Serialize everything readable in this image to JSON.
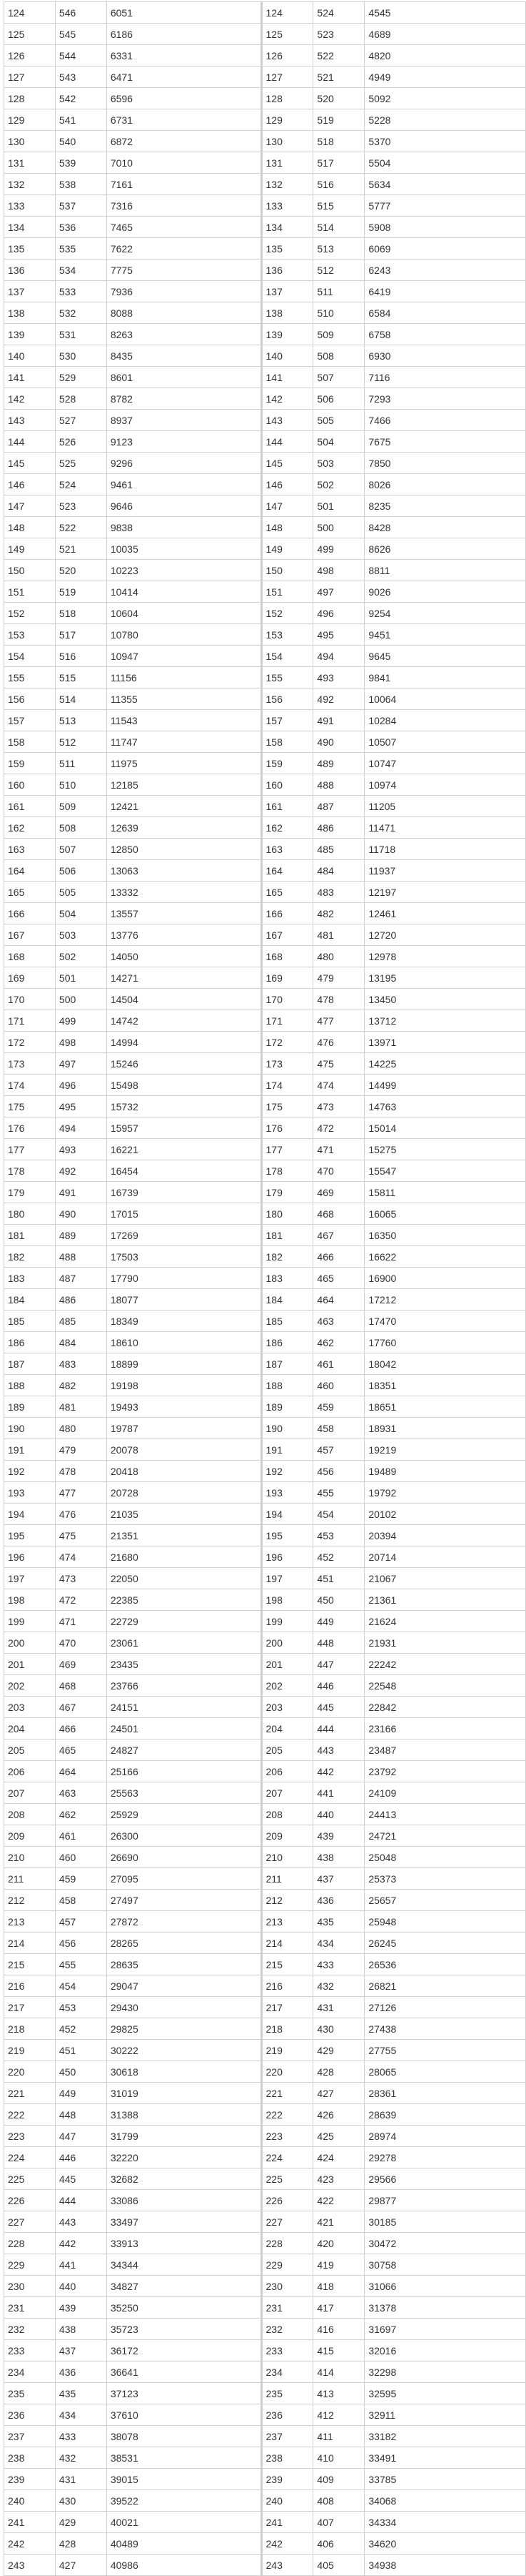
{
  "left": {
    "rows": [
      [
        "124",
        "546",
        "6051"
      ],
      [
        "125",
        "545",
        "6186"
      ],
      [
        "126",
        "544",
        "6331"
      ],
      [
        "127",
        "543",
        "6471"
      ],
      [
        "128",
        "542",
        "6596"
      ],
      [
        "129",
        "541",
        "6731"
      ],
      [
        "130",
        "540",
        "6872"
      ],
      [
        "131",
        "539",
        "7010"
      ],
      [
        "132",
        "538",
        "7161"
      ],
      [
        "133",
        "537",
        "7316"
      ],
      [
        "134",
        "536",
        "7465"
      ],
      [
        "135",
        "535",
        "7622"
      ],
      [
        "136",
        "534",
        "7775"
      ],
      [
        "137",
        "533",
        "7936"
      ],
      [
        "138",
        "532",
        "8088"
      ],
      [
        "139",
        "531",
        "8263"
      ],
      [
        "140",
        "530",
        "8435"
      ],
      [
        "141",
        "529",
        "8601"
      ],
      [
        "142",
        "528",
        "8782"
      ],
      [
        "143",
        "527",
        "8937"
      ],
      [
        "144",
        "526",
        "9123"
      ],
      [
        "145",
        "525",
        "9296"
      ],
      [
        "146",
        "524",
        "9461"
      ],
      [
        "147",
        "523",
        "9646"
      ],
      [
        "148",
        "522",
        "9838"
      ],
      [
        "149",
        "521",
        "10035"
      ],
      [
        "150",
        "520",
        "10223"
      ],
      [
        "151",
        "519",
        "10414"
      ],
      [
        "152",
        "518",
        "10604"
      ],
      [
        "153",
        "517",
        "10780"
      ],
      [
        "154",
        "516",
        "10947"
      ],
      [
        "155",
        "515",
        "11156"
      ],
      [
        "156",
        "514",
        "11355"
      ],
      [
        "157",
        "513",
        "11543"
      ],
      [
        "158",
        "512",
        "11747"
      ],
      [
        "159",
        "511",
        "11975"
      ],
      [
        "160",
        "510",
        "12185"
      ],
      [
        "161",
        "509",
        "12421"
      ],
      [
        "162",
        "508",
        "12639"
      ],
      [
        "163",
        "507",
        "12850"
      ],
      [
        "164",
        "506",
        "13063"
      ],
      [
        "165",
        "505",
        "13332"
      ],
      [
        "166",
        "504",
        "13557"
      ],
      [
        "167",
        "503",
        "13776"
      ],
      [
        "168",
        "502",
        "14050"
      ],
      [
        "169",
        "501",
        "14271"
      ],
      [
        "170",
        "500",
        "14504"
      ],
      [
        "171",
        "499",
        "14742"
      ],
      [
        "172",
        "498",
        "14994"
      ],
      [
        "173",
        "497",
        "15246"
      ],
      [
        "174",
        "496",
        "15498"
      ],
      [
        "175",
        "495",
        "15732"
      ],
      [
        "176",
        "494",
        "15957"
      ],
      [
        "177",
        "493",
        "16221"
      ],
      [
        "178",
        "492",
        "16454"
      ],
      [
        "179",
        "491",
        "16739"
      ],
      [
        "180",
        "490",
        "17015"
      ],
      [
        "181",
        "489",
        "17269"
      ],
      [
        "182",
        "488",
        "17503"
      ],
      [
        "183",
        "487",
        "17790"
      ],
      [
        "184",
        "486",
        "18077"
      ],
      [
        "185",
        "485",
        "18349"
      ],
      [
        "186",
        "484",
        "18610"
      ],
      [
        "187",
        "483",
        "18899"
      ],
      [
        "188",
        "482",
        "19198"
      ],
      [
        "189",
        "481",
        "19493"
      ],
      [
        "190",
        "480",
        "19787"
      ],
      [
        "191",
        "479",
        "20078"
      ],
      [
        "192",
        "478",
        "20418"
      ],
      [
        "193",
        "477",
        "20728"
      ],
      [
        "194",
        "476",
        "21035"
      ],
      [
        "195",
        "475",
        "21351"
      ],
      [
        "196",
        "474",
        "21680"
      ],
      [
        "197",
        "473",
        "22050"
      ],
      [
        "198",
        "472",
        "22385"
      ],
      [
        "199",
        "471",
        "22729"
      ],
      [
        "200",
        "470",
        "23061"
      ],
      [
        "201",
        "469",
        "23435"
      ],
      [
        "202",
        "468",
        "23766"
      ],
      [
        "203",
        "467",
        "24151"
      ],
      [
        "204",
        "466",
        "24501"
      ],
      [
        "205",
        "465",
        "24827"
      ],
      [
        "206",
        "464",
        "25166"
      ],
      [
        "207",
        "463",
        "25563"
      ],
      [
        "208",
        "462",
        "25929"
      ],
      [
        "209",
        "461",
        "26300"
      ],
      [
        "210",
        "460",
        "26690"
      ],
      [
        "211",
        "459",
        "27095"
      ],
      [
        "212",
        "458",
        "27497"
      ],
      [
        "213",
        "457",
        "27872"
      ],
      [
        "214",
        "456",
        "28265"
      ],
      [
        "215",
        "455",
        "28635"
      ],
      [
        "216",
        "454",
        "29047"
      ],
      [
        "217",
        "453",
        "29430"
      ],
      [
        "218",
        "452",
        "29825"
      ],
      [
        "219",
        "451",
        "30222"
      ],
      [
        "220",
        "450",
        "30618"
      ],
      [
        "221",
        "449",
        "31019"
      ],
      [
        "222",
        "448",
        "31388"
      ],
      [
        "223",
        "447",
        "31799"
      ],
      [
        "224",
        "446",
        "32220"
      ],
      [
        "225",
        "445",
        "32682"
      ],
      [
        "226",
        "444",
        "33086"
      ],
      [
        "227",
        "443",
        "33497"
      ],
      [
        "228",
        "442",
        "33913"
      ],
      [
        "229",
        "441",
        "34344"
      ],
      [
        "230",
        "440",
        "34827"
      ],
      [
        "231",
        "439",
        "35250"
      ],
      [
        "232",
        "438",
        "35723"
      ],
      [
        "233",
        "437",
        "36172"
      ],
      [
        "234",
        "436",
        "36641"
      ],
      [
        "235",
        "435",
        "37123"
      ],
      [
        "236",
        "434",
        "37610"
      ],
      [
        "237",
        "433",
        "38078"
      ],
      [
        "238",
        "432",
        "38531"
      ],
      [
        "239",
        "431",
        "39015"
      ],
      [
        "240",
        "430",
        "39522"
      ],
      [
        "241",
        "429",
        "40021"
      ],
      [
        "242",
        "428",
        "40489"
      ],
      [
        "243",
        "427",
        "40986"
      ]
    ]
  },
  "right": {
    "rows": [
      [
        "124",
        "524",
        "4545"
      ],
      [
        "125",
        "523",
        "4689"
      ],
      [
        "126",
        "522",
        "4820"
      ],
      [
        "127",
        "521",
        "4949"
      ],
      [
        "128",
        "520",
        "5092"
      ],
      [
        "129",
        "519",
        "5228"
      ],
      [
        "130",
        "518",
        "5370"
      ],
      [
        "131",
        "517",
        "5504"
      ],
      [
        "132",
        "516",
        "5634"
      ],
      [
        "133",
        "515",
        "5777"
      ],
      [
        "134",
        "514",
        "5908"
      ],
      [
        "135",
        "513",
        "6069"
      ],
      [
        "136",
        "512",
        "6243"
      ],
      [
        "137",
        "511",
        "6419"
      ],
      [
        "138",
        "510",
        "6584"
      ],
      [
        "139",
        "509",
        "6758"
      ],
      [
        "140",
        "508",
        "6930"
      ],
      [
        "141",
        "507",
        "7116"
      ],
      [
        "142",
        "506",
        "7293"
      ],
      [
        "143",
        "505",
        "7466"
      ],
      [
        "144",
        "504",
        "7675"
      ],
      [
        "145",
        "503",
        "7850"
      ],
      [
        "146",
        "502",
        "8026"
      ],
      [
        "147",
        "501",
        "8235"
      ],
      [
        "148",
        "500",
        "8428"
      ],
      [
        "149",
        "499",
        "8626"
      ],
      [
        "150",
        "498",
        "8811"
      ],
      [
        "151",
        "497",
        "9026"
      ],
      [
        "152",
        "496",
        "9254"
      ],
      [
        "153",
        "495",
        "9451"
      ],
      [
        "154",
        "494",
        "9645"
      ],
      [
        "155",
        "493",
        "9841"
      ],
      [
        "156",
        "492",
        "10064"
      ],
      [
        "157",
        "491",
        "10284"
      ],
      [
        "158",
        "490",
        "10507"
      ],
      [
        "159",
        "489",
        "10747"
      ],
      [
        "160",
        "488",
        "10974"
      ],
      [
        "161",
        "487",
        "11205"
      ],
      [
        "162",
        "486",
        "11471"
      ],
      [
        "163",
        "485",
        "11718"
      ],
      [
        "164",
        "484",
        "11937"
      ],
      [
        "165",
        "483",
        "12197"
      ],
      [
        "166",
        "482",
        "12461"
      ],
      [
        "167",
        "481",
        "12720"
      ],
      [
        "168",
        "480",
        "12978"
      ],
      [
        "169",
        "479",
        "13195"
      ],
      [
        "170",
        "478",
        "13450"
      ],
      [
        "171",
        "477",
        "13712"
      ],
      [
        "172",
        "476",
        "13971"
      ],
      [
        "173",
        "475",
        "14225"
      ],
      [
        "174",
        "474",
        "14499"
      ],
      [
        "175",
        "473",
        "14763"
      ],
      [
        "176",
        "472",
        "15014"
      ],
      [
        "177",
        "471",
        "15275"
      ],
      [
        "178",
        "470",
        "15547"
      ],
      [
        "179",
        "469",
        "15811"
      ],
      [
        "180",
        "468",
        "16065"
      ],
      [
        "181",
        "467",
        "16350"
      ],
      [
        "182",
        "466",
        "16622"
      ],
      [
        "183",
        "465",
        "16900"
      ],
      [
        "184",
        "464",
        "17212"
      ],
      [
        "185",
        "463",
        "17470"
      ],
      [
        "186",
        "462",
        "17760"
      ],
      [
        "187",
        "461",
        "18042"
      ],
      [
        "188",
        "460",
        "18351"
      ],
      [
        "189",
        "459",
        "18651"
      ],
      [
        "190",
        "458",
        "18931"
      ],
      [
        "191",
        "457",
        "19219"
      ],
      [
        "192",
        "456",
        "19489"
      ],
      [
        "193",
        "455",
        "19792"
      ],
      [
        "194",
        "454",
        "20102"
      ],
      [
        "195",
        "453",
        "20394"
      ],
      [
        "196",
        "452",
        "20714"
      ],
      [
        "197",
        "451",
        "21067"
      ],
      [
        "198",
        "450",
        "21361"
      ],
      [
        "199",
        "449",
        "21624"
      ],
      [
        "200",
        "448",
        "21931"
      ],
      [
        "201",
        "447",
        "22242"
      ],
      [
        "202",
        "446",
        "22548"
      ],
      [
        "203",
        "445",
        "22842"
      ],
      [
        "204",
        "444",
        "23166"
      ],
      [
        "205",
        "443",
        "23487"
      ],
      [
        "206",
        "442",
        "23792"
      ],
      [
        "207",
        "441",
        "24109"
      ],
      [
        "208",
        "440",
        "24413"
      ],
      [
        "209",
        "439",
        "24721"
      ],
      [
        "210",
        "438",
        "25048"
      ],
      [
        "211",
        "437",
        "25373"
      ],
      [
        "212",
        "436",
        "25657"
      ],
      [
        "213",
        "435",
        "25948"
      ],
      [
        "214",
        "434",
        "26245"
      ],
      [
        "215",
        "433",
        "26536"
      ],
      [
        "216",
        "432",
        "26821"
      ],
      [
        "217",
        "431",
        "27126"
      ],
      [
        "218",
        "430",
        "27438"
      ],
      [
        "219",
        "429",
        "27755"
      ],
      [
        "220",
        "428",
        "28065"
      ],
      [
        "221",
        "427",
        "28361"
      ],
      [
        "222",
        "426",
        "28639"
      ],
      [
        "223",
        "425",
        "28974"
      ],
      [
        "224",
        "424",
        "29278"
      ],
      [
        "225",
        "423",
        "29566"
      ],
      [
        "226",
        "422",
        "29877"
      ],
      [
        "227",
        "421",
        "30185"
      ],
      [
        "228",
        "420",
        "30472"
      ],
      [
        "229",
        "419",
        "30758"
      ],
      [
        "230",
        "418",
        "31066"
      ],
      [
        "231",
        "417",
        "31378"
      ],
      [
        "232",
        "416",
        "31697"
      ],
      [
        "233",
        "415",
        "32016"
      ],
      [
        "234",
        "414",
        "32298"
      ],
      [
        "235",
        "413",
        "32595"
      ],
      [
        "236",
        "412",
        "32911"
      ],
      [
        "237",
        "411",
        "33182"
      ],
      [
        "238",
        "410",
        "33491"
      ],
      [
        "239",
        "409",
        "33785"
      ],
      [
        "240",
        "408",
        "34068"
      ],
      [
        "241",
        "407",
        "34334"
      ],
      [
        "242",
        "406",
        "34620"
      ],
      [
        "243",
        "405",
        "34938"
      ]
    ]
  }
}
